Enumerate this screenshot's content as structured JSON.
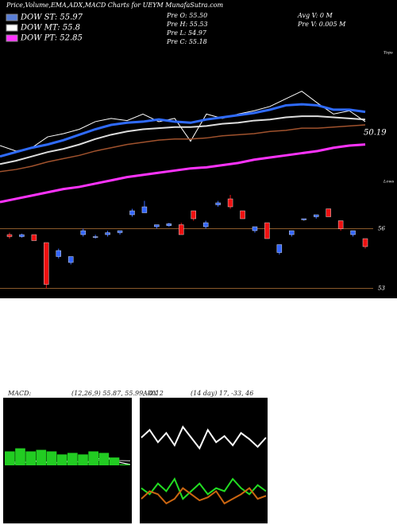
{
  "chart_data": [
    {
      "type": "line",
      "title": "Price,Volume,EMA,ADX,MACD Charts for UEYM MunafaSutra.com",
      "legend": [
        {
          "text": "DOW ST: 55.97",
          "color": "#5a7fd8"
        },
        {
          "text": "DOW MT: 55.8",
          "color": "#ffffff"
        },
        {
          "text": "DOW PT: 52.85",
          "color": "#ff33ff"
        }
      ],
      "info": [
        "Pre O: 55.50",
        "Pre H: 55.53",
        "Pre L: 54.97",
        "Pre C: 55.18",
        "Avg V: 0  M",
        "Pre  V: 0.005 M"
      ],
      "annotations": [
        "50.19",
        "Tops",
        "Lows"
      ],
      "ylim": [
        45,
        60
      ],
      "series": [
        {
          "color": "#ffffff",
          "width": 1,
          "values": [
            51.0,
            50.5,
            50.8,
            51.8,
            52.1,
            52.5,
            53.2,
            53.5,
            53.3,
            53.9,
            53.2,
            53.5,
            51.4,
            53.9,
            53.5,
            53.9,
            54.2,
            54.6,
            55.3,
            56.0,
            54.9,
            53.9,
            54.2,
            53.2
          ]
        },
        {
          "color": "#2f6bff",
          "width": 3,
          "values": [
            50.0,
            50.4,
            50.8,
            51.1,
            51.5,
            52.0,
            52.5,
            52.9,
            53.1,
            53.2,
            53.4,
            53.2,
            53.1,
            53.4,
            53.6,
            53.8,
            54.0,
            54.3,
            54.7,
            54.8,
            54.7,
            54.3,
            54.3,
            54.1
          ]
        },
        {
          "color": "#dddddd",
          "width": 2,
          "values": [
            49.3,
            49.6,
            50.0,
            50.4,
            50.7,
            51.1,
            51.6,
            52.0,
            52.3,
            52.5,
            52.6,
            52.7,
            52.7,
            52.8,
            53.0,
            53.1,
            53.3,
            53.4,
            53.6,
            53.7,
            53.7,
            53.6,
            53.5,
            53.4
          ]
        },
        {
          "color": "#a0522d",
          "width": 1.5,
          "values": [
            48.6,
            48.8,
            49.1,
            49.5,
            49.8,
            50.1,
            50.5,
            50.8,
            51.1,
            51.3,
            51.5,
            51.6,
            51.6,
            51.7,
            51.9,
            52.0,
            52.1,
            52.3,
            52.4,
            52.6,
            52.6,
            52.7,
            52.8,
            52.9
          ]
        },
        {
          "color": "#ff33ff",
          "width": 3,
          "values": [
            45.8,
            46.1,
            46.4,
            46.7,
            47.0,
            47.2,
            47.5,
            47.8,
            48.1,
            48.3,
            48.5,
            48.7,
            48.9,
            49.0,
            49.2,
            49.4,
            49.7,
            49.9,
            50.1,
            50.3,
            50.5,
            50.8,
            51.0,
            51.1
          ]
        }
      ]
    },
    {
      "type": "candlestick",
      "ylim": [
        52.5,
        58
      ],
      "yticks": [
        56,
        53
      ],
      "up_color": "#3366ff",
      "down_color": "#ee1111",
      "open": [
        55.7,
        55.6,
        55.7,
        55.3,
        54.6,
        54.3,
        55.7,
        55.6,
        55.7,
        55.8,
        56.7,
        56.8,
        56.1,
        56.15,
        56.2,
        56.9,
        56.1,
        57.2,
        57.5,
        56.9,
        55.9,
        56.3,
        54.8,
        55.7,
        56.45,
        56.6,
        57.0,
        56.4,
        55.7,
        55.5
      ],
      "high": [
        55.8,
        55.75,
        55.7,
        55.3,
        55.0,
        54.6,
        56.0,
        55.7,
        55.9,
        55.9,
        57.0,
        57.4,
        56.2,
        56.3,
        56.3,
        56.9,
        56.4,
        57.4,
        57.7,
        56.9,
        56.1,
        56.3,
        55.2,
        55.9,
        56.5,
        56.7,
        57.0,
        56.4,
        55.9,
        55.5
      ],
      "low": [
        55.5,
        55.55,
        55.4,
        53.0,
        54.5,
        54.2,
        55.6,
        55.5,
        55.6,
        55.7,
        56.6,
        56.8,
        56.0,
        56.1,
        55.7,
        56.4,
        56.0,
        57.1,
        57.0,
        56.5,
        55.8,
        55.5,
        54.7,
        55.6,
        56.4,
        56.5,
        56.6,
        55.9,
        55.6,
        55.0
      ],
      "close": [
        55.6,
        55.7,
        55.4,
        53.2,
        54.9,
        54.6,
        55.9,
        55.6,
        55.8,
        55.9,
        56.9,
        57.1,
        56.2,
        56.25,
        55.7,
        56.5,
        56.3,
        57.3,
        57.1,
        56.5,
        56.1,
        55.5,
        55.2,
        55.9,
        56.5,
        56.7,
        56.6,
        56.0,
        55.9,
        55.1
      ]
    },
    {
      "type": "macd",
      "title": "MACD:",
      "subtitle": "(12,26,9) 55.87, 55.99, -0.12",
      "ylim": [
        54,
        58
      ],
      "y2lim": [
        -2,
        2
      ],
      "series": [
        {
          "color": "#ffffff",
          "values": [
            56.0,
            55.9,
            55.95,
            56.0,
            55.9,
            55.95,
            56.0,
            55.9,
            56.05,
            56.1,
            55.95,
            55.87
          ]
        },
        {
          "color": "#aaaaaa",
          "values": [
            56.0,
            55.95,
            55.95,
            55.97,
            55.95,
            55.93,
            55.97,
            55.95,
            56.0,
            56.05,
            56.0,
            55.99
          ]
        },
        {
          "color": "#22cc22",
          "axis": "y2",
          "values": [
            0.3,
            0.4,
            0.3,
            0.35,
            0.3,
            0.2,
            0.25,
            0.2,
            0.3,
            0.25,
            0.1,
            -0.12
          ]
        }
      ]
    },
    {
      "type": "adx",
      "title": "ADX",
      "subtitle": "(14 day) 17, -33, 46",
      "ylim": [
        0,
        80
      ],
      "series": [
        {
          "color": "#ffffff",
          "values": [
            55,
            60,
            52,
            58,
            50,
            62,
            55,
            48,
            60,
            52,
            56,
            50,
            58,
            54,
            49,
            55
          ]
        },
        {
          "color": "#22dd22",
          "values": [
            22,
            18,
            25,
            20,
            28,
            15,
            20,
            25,
            18,
            22,
            20,
            28,
            22,
            18,
            24,
            20
          ]
        },
        {
          "color": "#cc6611",
          "values": [
            15,
            20,
            18,
            12,
            15,
            22,
            18,
            14,
            16,
            20,
            12,
            15,
            18,
            22,
            15,
            17
          ]
        }
      ]
    }
  ]
}
